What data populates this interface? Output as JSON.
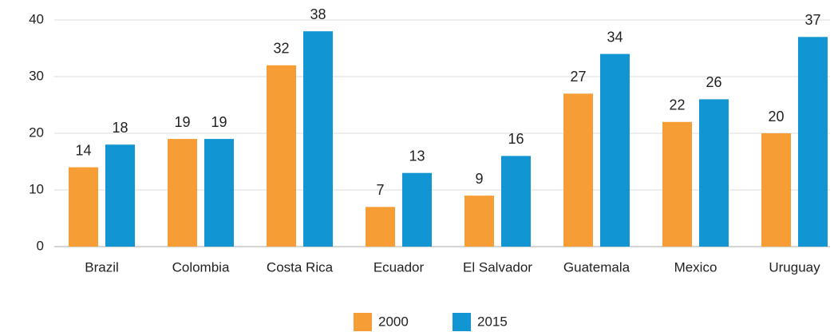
{
  "chart_data": {
    "type": "bar",
    "categories": [
      "Brazil",
      "Colombia",
      "Costa Rica",
      "Ecuador",
      "El Salvador",
      "Guatemala",
      "Mexico",
      "Uruguay"
    ],
    "series": [
      {
        "name": "2000",
        "color": "#f79d35",
        "values": [
          14,
          19,
          32,
          7,
          9,
          27,
          22,
          20
        ]
      },
      {
        "name": "2015",
        "color": "#1296d3",
        "values": [
          18,
          19,
          38,
          13,
          16,
          34,
          26,
          37
        ]
      }
    ],
    "ylim": [
      0,
      40
    ],
    "yticks": [
      0,
      10,
      20,
      30,
      40
    ],
    "grid": true,
    "legend": "bottom"
  }
}
